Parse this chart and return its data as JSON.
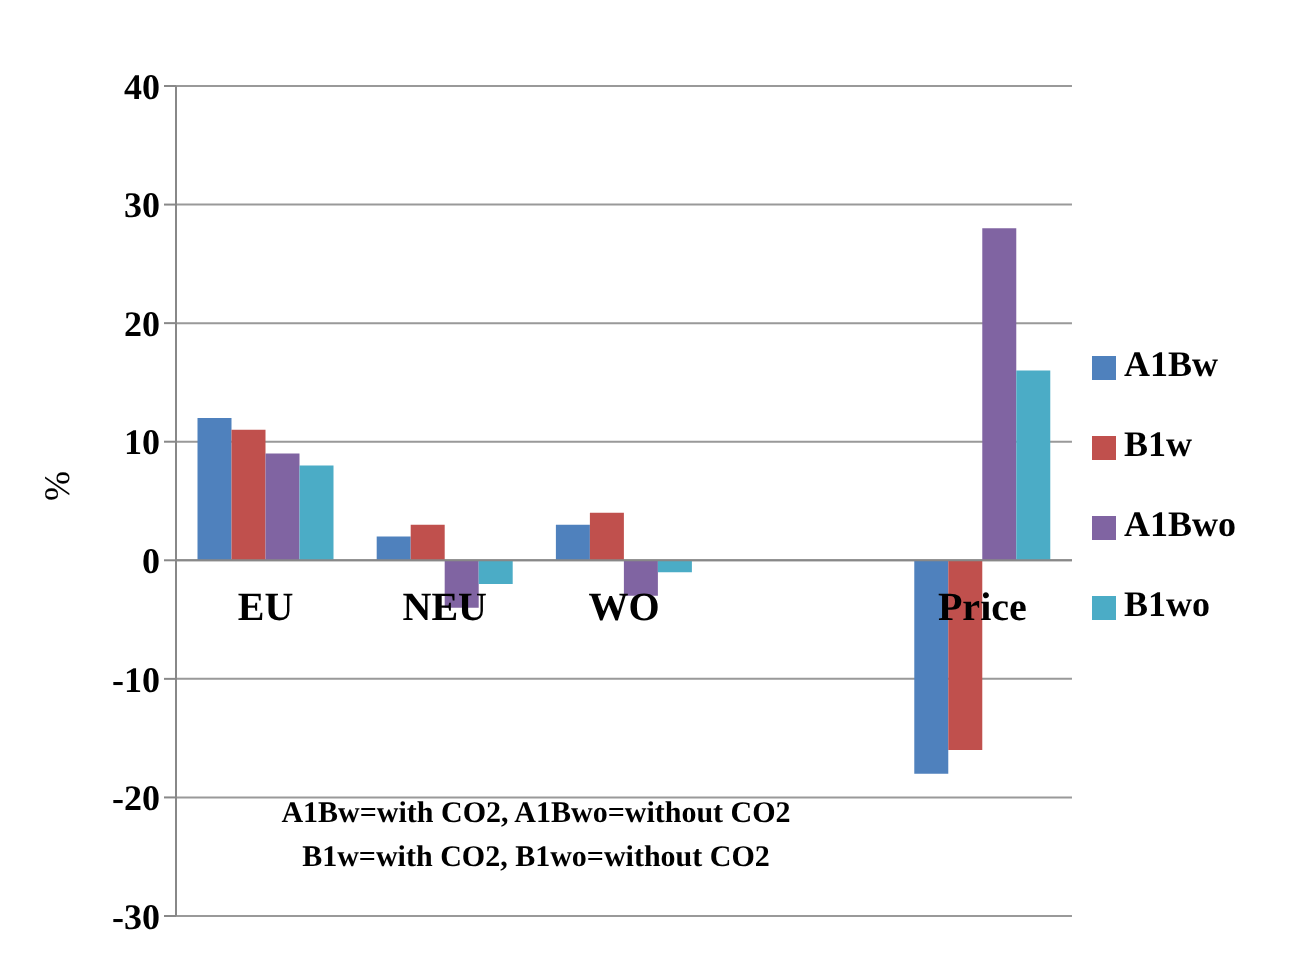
{
  "chart_data": {
    "type": "bar",
    "ylabel": "%",
    "categories": [
      "EU",
      "NEU",
      "WO",
      null,
      "Price"
    ],
    "series": [
      {
        "name": "A1Bw",
        "color": "#4f81bd",
        "values": [
          12,
          2,
          3,
          null,
          -18
        ]
      },
      {
        "name": "B1w",
        "color": "#c0504d",
        "values": [
          11,
          3,
          4,
          null,
          -16
        ]
      },
      {
        "name": "A1Bwo",
        "color": "#8064a2",
        "values": [
          9,
          -4,
          -3,
          null,
          28
        ]
      },
      {
        "name": "B1wo",
        "color": "#4bacc6",
        "values": [
          8,
          -2,
          -1,
          null,
          16
        ]
      }
    ],
    "ylim": [
      -30,
      40
    ],
    "yticks": [
      -30,
      -20,
      -10,
      0,
      10,
      20,
      30,
      40
    ],
    "grid": "y",
    "legend": "right",
    "annotations": [
      "A1Bw=with CO2, A1Bwo=without CO2",
      "B1w=with CO2, B1wo=without CO2"
    ]
  }
}
